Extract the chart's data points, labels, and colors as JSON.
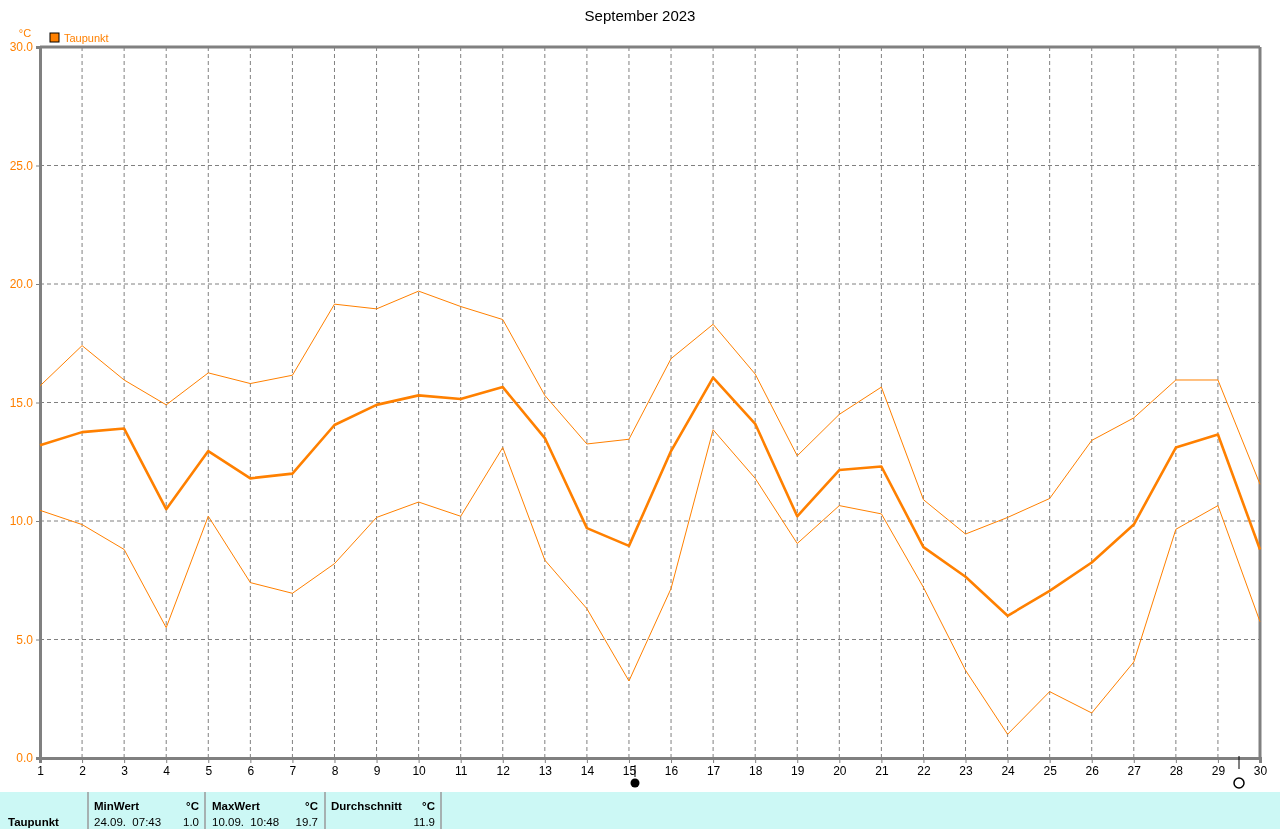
{
  "chart_data": {
    "type": "line",
    "title": "September 2023",
    "ylabel": "°C",
    "legend": "top left",
    "grid": true,
    "marker": "none",
    "line_style": "solid",
    "x": [
      1,
      2,
      3,
      4,
      5,
      6,
      7,
      8,
      9,
      10,
      11,
      12,
      13,
      14,
      15,
      16,
      17,
      18,
      19,
      20,
      21,
      22,
      23,
      24,
      25,
      26,
      27,
      28,
      29,
      30
    ],
    "xlim": [
      1,
      30
    ],
    "xticks": [
      1,
      2,
      3,
      4,
      5,
      6,
      7,
      8,
      9,
      10,
      11,
      12,
      13,
      14,
      15,
      16,
      17,
      18,
      19,
      20,
      21,
      22,
      23,
      24,
      25,
      26,
      27,
      28,
      29,
      30
    ],
    "ylim": [
      0,
      30
    ],
    "yticks": [
      {
        "value": 0,
        "label": "0.0"
      },
      {
        "value": 5,
        "label": "5.0"
      },
      {
        "value": 10,
        "label": "10.0"
      },
      {
        "value": 15,
        "label": "15.0"
      },
      {
        "value": 20,
        "label": "20.0"
      },
      {
        "value": 25,
        "label": "25.0"
      },
      {
        "value": 30,
        "label": "30.0"
      }
    ],
    "series": [
      {
        "name": "Taupunkt",
        "color": "#ff8000",
        "values": [
          13.2,
          13.75,
          13.9,
          10.5,
          12.95,
          11.8,
          12.0,
          14.05,
          14.9,
          15.3,
          15.15,
          15.65,
          13.5,
          9.7,
          8.95,
          12.95,
          16.05,
          14.1,
          10.2,
          12.15,
          12.3,
          8.9,
          7.65,
          6.0,
          7.05,
          8.25,
          9.85,
          13.1,
          13.65,
          8.8
        ]
      },
      {
        "color": "#ff8000",
        "values": [
          15.7,
          17.4,
          15.95,
          14.9,
          16.25,
          15.8,
          16.15,
          19.15,
          18.95,
          19.7,
          19.05,
          18.5,
          15.3,
          13.25,
          13.45,
          16.85,
          18.3,
          16.2,
          12.75,
          14.5,
          15.65,
          10.9,
          9.45,
          10.15,
          10.95,
          13.4,
          14.35,
          15.95,
          15.95,
          11.55
        ]
      },
      {
        "color": "#ff8000",
        "values": [
          10.45,
          9.85,
          8.8,
          5.5,
          10.2,
          7.4,
          6.95,
          8.2,
          10.15,
          10.8,
          10.2,
          13.1,
          8.35,
          6.3,
          3.25,
          7.15,
          13.85,
          11.8,
          9.05,
          10.65,
          10.3,
          7.2,
          3.7,
          1.0,
          2.8,
          1.9,
          4.05,
          9.65,
          10.65,
          5.75
        ]
      }
    ],
    "annotations": [
      "Taupunkt",
      "MinWert",
      "°C",
      "24.09.  07:43",
      "1.0",
      "MaxWert",
      "°C",
      "10.09.  10:48",
      "19.7",
      "Durchschnitt",
      "°C",
      "11.9"
    ]
  }
}
